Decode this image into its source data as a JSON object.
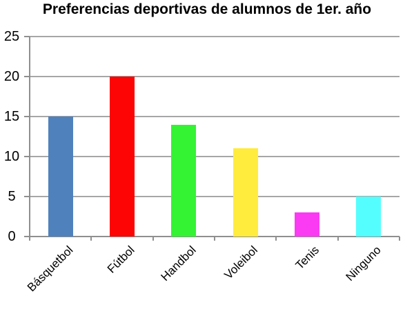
{
  "chart_data": {
    "type": "bar",
    "title": "Preferencias deportivas de alumnos de 1er. año",
    "categories": [
      "Básquetbol",
      "Fútbol",
      "Handbol",
      "Voleibol",
      "Tenis",
      "Ninguno"
    ],
    "values": [
      15,
      20,
      14,
      11,
      3,
      5
    ],
    "bar_colors": [
      "#4F81BD",
      "#FE0505",
      "#33F333",
      "#FFEC3D",
      "#FB3BF3",
      "#55FEFE"
    ],
    "xlabel": "",
    "ylabel": "",
    "ylim": [
      0,
      25
    ],
    "yticks": [
      0,
      5,
      10,
      15,
      20,
      25
    ],
    "grid": "horizontal",
    "legend": "none",
    "colors": {
      "gridline": "#A6A6A6",
      "axis": "#8F8F8F",
      "text": "#000000",
      "background": "#FFFFFF"
    }
  }
}
